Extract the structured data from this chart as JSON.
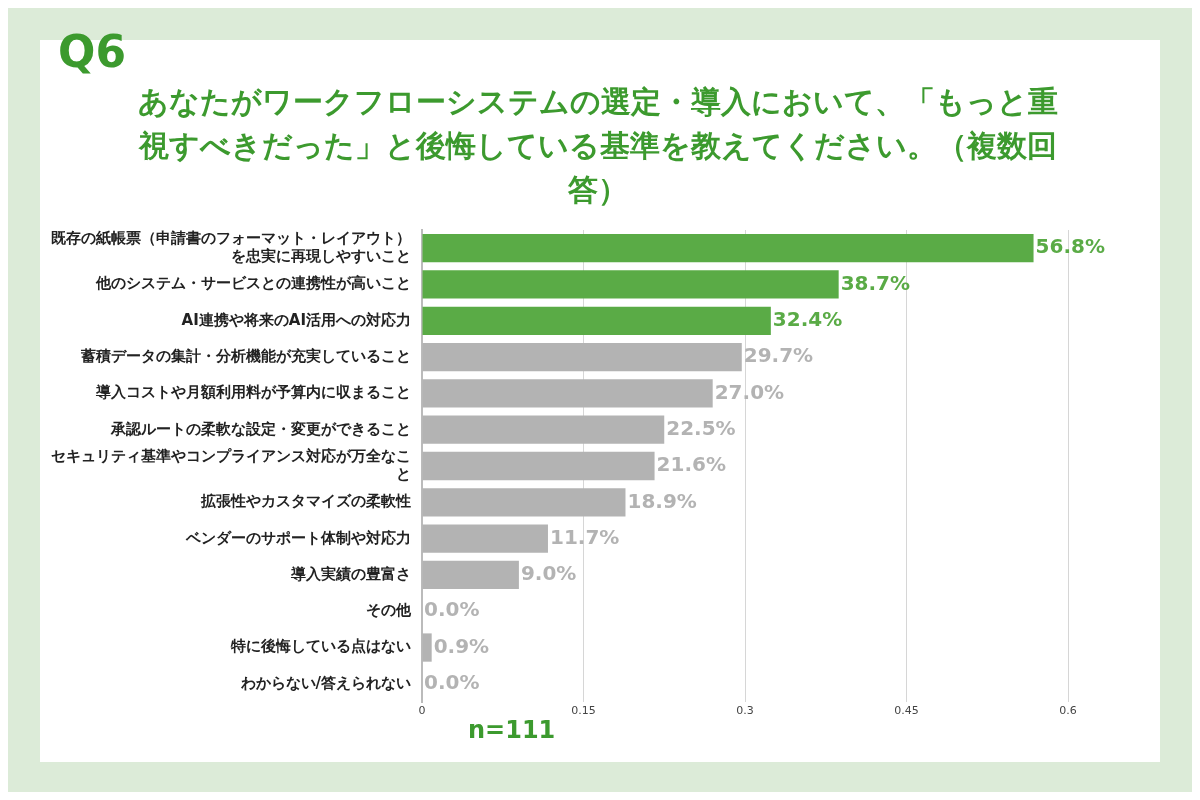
{
  "chart_data": {
    "type": "bar",
    "orientation": "horizontal",
    "title": "あなたがワークフローシステムの選定・導入において、「もっと重視すべきだった」と後悔している基準を教えてください。（複数回答）",
    "annotations": [
      "Q6",
      "n=111"
    ],
    "categories": [
      "既存の紙帳票（申請書のフォーマット・レイアウト）を忠実に再現しやすいこと",
      "他のシステム・サービスとの連携性が高いこと",
      "AI連携や将来のAI活用への対応力",
      "蓄積データの集計・分析機能が充実していること",
      "導入コストや月額利用料が予算内に収まること",
      "承認ルートの柔軟な設定・変更ができること",
      "セキュリティ基準やコンプライアンス対応が万全なこと",
      "拡張性やカスタマイズの柔軟性",
      "ベンダーのサポート体制や対応力",
      "導入実績の豊富さ",
      "その他",
      "特に後悔している点はない",
      "わからない/答えられない"
    ],
    "values": [
      0.568,
      0.387,
      0.324,
      0.297,
      0.27,
      0.225,
      0.216,
      0.189,
      0.117,
      0.09,
      0.0,
      0.009,
      0.0
    ],
    "value_labels": [
      "56.8%",
      "38.7%",
      "32.4%",
      "29.7%",
      "27.0%",
      "22.5%",
      "21.6%",
      "18.9%",
      "11.7%",
      "9.0%",
      "0.0%",
      "0.9%",
      "0.0%"
    ],
    "colors": [
      "#5aab46",
      "#5aab46",
      "#5aab46",
      "#b3b3b3",
      "#b3b3b3",
      "#b3b3b3",
      "#b3b3b3",
      "#b3b3b3",
      "#b3b3b3",
      "#b3b3b3",
      "#b3b3b3",
      "#b3b3b3",
      "#b3b3b3"
    ],
    "xlim": [
      0,
      0.6
    ],
    "xticks": [
      0,
      0.15,
      0.3,
      0.45,
      0.6
    ],
    "grid": "x",
    "legend": false
  }
}
